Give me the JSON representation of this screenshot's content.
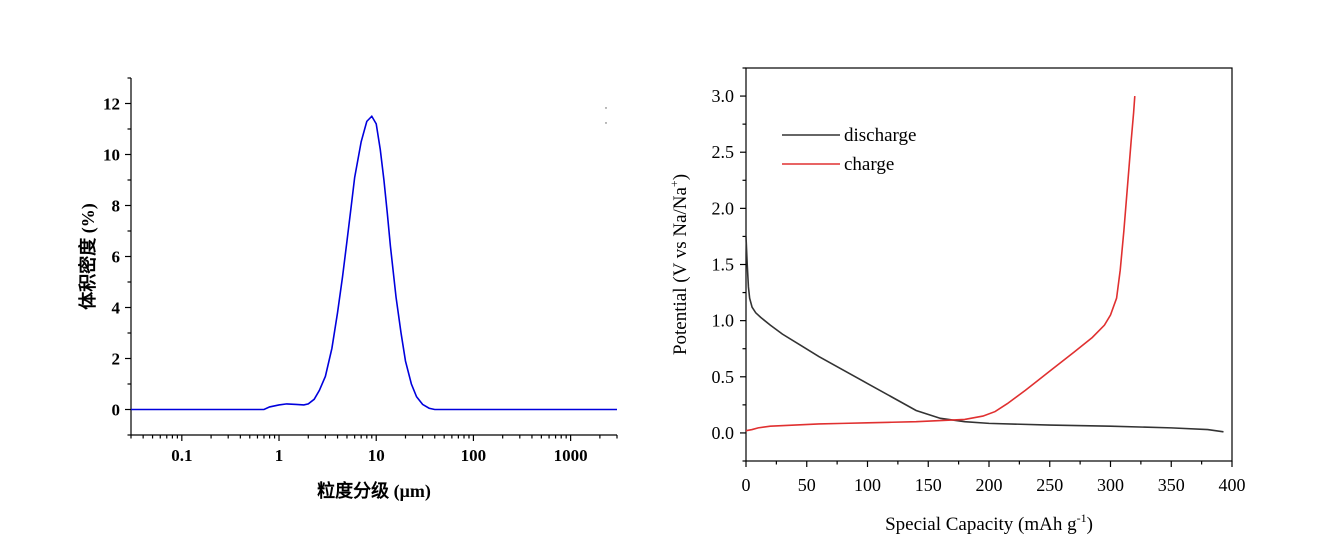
{
  "chart_data": [
    {
      "type": "line",
      "title": "",
      "xlabel": "粒度分级 (μm)",
      "ylabel": "体积密度 (%)",
      "xscale": "log",
      "xlim": [
        0.03,
        3000
      ],
      "ylim": [
        -1,
        13
      ],
      "xticks": [
        0.1,
        1,
        10,
        100,
        1000
      ],
      "xtick_labels": [
        "0.1",
        "1",
        "10",
        "100",
        "1000"
      ],
      "yticks": [
        0,
        2,
        4,
        6,
        8,
        10,
        12
      ],
      "ytick_labels": [
        "0",
        "2",
        "4",
        "6",
        "8",
        "10",
        "12"
      ],
      "grid": false,
      "series": [
        {
          "color": "#0000dd",
          "x": [
            0.03,
            0.7,
            0.8,
            1.0,
            1.2,
            1.5,
            1.8,
            2.0,
            2.3,
            2.6,
            3.0,
            3.5,
            4.0,
            4.5,
            5.0,
            5.5,
            6.0,
            7.0,
            8.0,
            9.0,
            10.0,
            11.0,
            12.0,
            13.0,
            14.0,
            16.0,
            18.0,
            20.0,
            23.0,
            26.0,
            30.0,
            35.0,
            40.0,
            100,
            3000
          ],
          "y": [
            0,
            0,
            0.1,
            0.18,
            0.22,
            0.2,
            0.18,
            0.22,
            0.4,
            0.75,
            1.3,
            2.4,
            3.8,
            5.2,
            6.6,
            7.9,
            9.1,
            10.5,
            11.3,
            11.5,
            11.2,
            10.2,
            9.0,
            7.7,
            6.4,
            4.4,
            3.0,
            1.9,
            1.0,
            0.5,
            0.2,
            0.05,
            0,
            0,
            0
          ]
        }
      ]
    },
    {
      "type": "line",
      "title": "",
      "xlabel": "Special Capacity (mAh g",
      "xlabel_sup": "-1",
      "xlabel_end": ")",
      "ylabel": "Potential (V vs Na/Na",
      "ylabel_sup": "+",
      "ylabel_end": ")",
      "xlim": [
        0,
        400
      ],
      "ylim": [
        -0.25,
        3.25
      ],
      "xticks": [
        0,
        50,
        100,
        150,
        200,
        250,
        300,
        350,
        400
      ],
      "xtick_labels": [
        "0",
        "50",
        "100",
        "150",
        "200",
        "250",
        "300",
        "350",
        "400"
      ],
      "yticks": [
        0.0,
        0.5,
        1.0,
        1.5,
        2.0,
        2.5,
        3.0
      ],
      "ytick_labels": [
        "0.0",
        "0.5",
        "1.0",
        "1.5",
        "2.0",
        "2.5",
        "3.0"
      ],
      "grid": false,
      "legend": "top-left",
      "series": [
        {
          "name": "discharge",
          "color": "#333333",
          "x": [
            0,
            1,
            2,
            3,
            5,
            8,
            12,
            20,
            30,
            45,
            60,
            80,
            100,
            120,
            140,
            160,
            180,
            200,
            250,
            300,
            350,
            380,
            393
          ],
          "y": [
            1.75,
            1.5,
            1.3,
            1.2,
            1.12,
            1.07,
            1.03,
            0.96,
            0.88,
            0.78,
            0.68,
            0.56,
            0.44,
            0.32,
            0.2,
            0.13,
            0.1,
            0.085,
            0.07,
            0.06,
            0.045,
            0.03,
            0.01
          ]
        },
        {
          "name": "charge",
          "color": "#e03030",
          "x": [
            0,
            5,
            10,
            20,
            40,
            60,
            80,
            100,
            120,
            140,
            160,
            180,
            195,
            205,
            215,
            230,
            250,
            270,
            285,
            295,
            300,
            305,
            308,
            311,
            314,
            317,
            319,
            320
          ],
          "y": [
            0.02,
            0.03,
            0.045,
            0.06,
            0.07,
            0.08,
            0.085,
            0.09,
            0.095,
            0.1,
            0.11,
            0.12,
            0.15,
            0.19,
            0.26,
            0.38,
            0.55,
            0.72,
            0.85,
            0.96,
            1.05,
            1.2,
            1.45,
            1.8,
            2.2,
            2.6,
            2.85,
            3.0
          ]
        }
      ]
    }
  ]
}
